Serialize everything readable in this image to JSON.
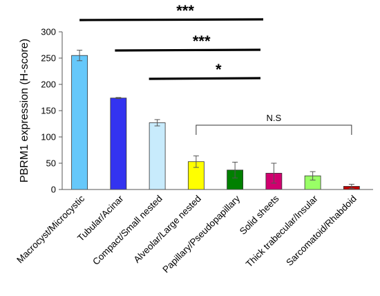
{
  "chart_data": {
    "type": "bar",
    "title": "",
    "xlabel": "",
    "ylabel": "PBRM1 expression (H-score)",
    "ylim": [
      0,
      300
    ],
    "yticks": [
      0,
      50,
      100,
      150,
      200,
      250,
      300
    ],
    "grid": false,
    "legend": "none",
    "categories": [
      "Macrocyst/Microcystic",
      "Tubular/Acinar",
      "Compact/Small nested",
      "Alveolar/Large nested",
      "Papillary/Pseudopapillary",
      "Solid sheets",
      "Thick trabecular/Insular",
      "Sarcomatoid/Rhabdoid"
    ],
    "values": [
      255,
      174,
      127,
      53,
      37,
      31,
      26,
      6
    ],
    "errors": [
      10,
      1,
      6,
      11,
      15,
      19,
      8,
      4
    ],
    "colors": [
      "#66c8fa",
      "#3333f0",
      "#c8ebfc",
      "#ffff00",
      "#008000",
      "#d0006f",
      "#99ff66",
      "#c00000"
    ],
    "significance": [
      {
        "label": "***",
        "from": 0,
        "to": 5
      },
      {
        "label": "***",
        "from": 1,
        "to": 5
      },
      {
        "label": "*",
        "from": 2,
        "to": 5
      }
    ],
    "bracket": {
      "label": "N.S",
      "from": 3,
      "to": 7
    }
  }
}
